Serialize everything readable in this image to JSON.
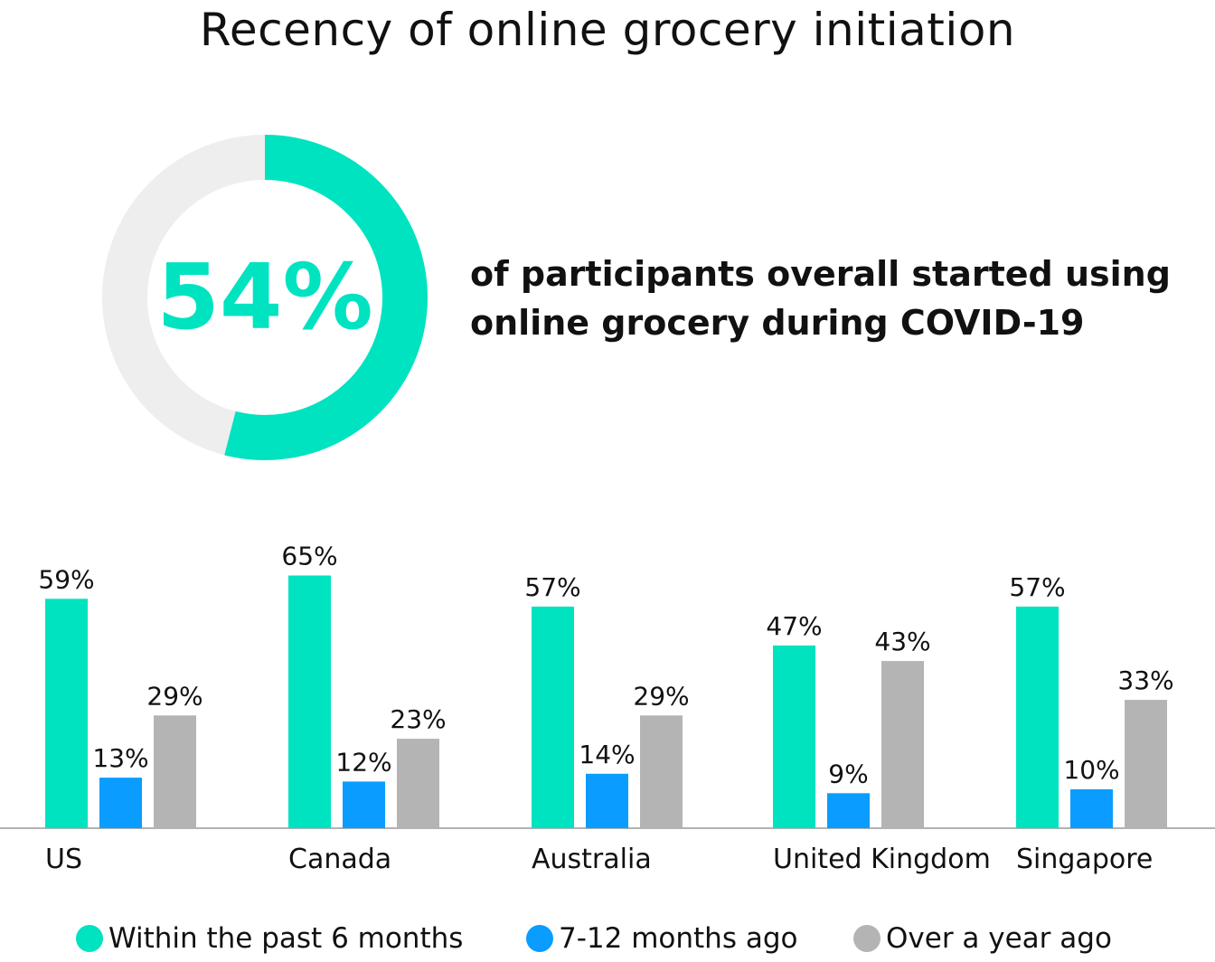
{
  "title": "Recency of online grocery initiation",
  "headline": {
    "value": "54%",
    "text_line1": "of participants overall started using",
    "text_line2": "online grocery during COVID-19"
  },
  "colors": {
    "within_6_months": "#00E3C0",
    "months_7_12": "#0A9DFF",
    "over_a_year": "#B4B4B4",
    "donut_track": "#EEEEEE",
    "axis": "#999999"
  },
  "chart_data": [
    {
      "type": "pie",
      "variant": "donut",
      "values": [
        54,
        46
      ],
      "center_label": "54%"
    },
    {
      "type": "bar",
      "categories": [
        "US",
        "Canada",
        "Australia",
        "United Kingdom",
        "Singapore"
      ],
      "series": [
        {
          "name": "Within the past 6 months",
          "values": [
            59,
            65,
            57,
            47,
            57
          ],
          "labels": [
            "59%",
            "65%",
            "57%",
            "47%",
            "57%"
          ]
        },
        {
          "name": "7-12 months ago",
          "values": [
            13,
            12,
            14,
            9,
            10
          ],
          "labels": [
            "13%",
            "12%",
            "14%",
            "9%",
            "10%"
          ]
        },
        {
          "name": "Over a year ago",
          "values": [
            29,
            23,
            29,
            43,
            33
          ],
          "labels": [
            "29%",
            "23%",
            "29%",
            "43%",
            "33%"
          ]
        }
      ],
      "ylim": [
        0,
        65
      ],
      "grid": false,
      "legend": "bottom"
    }
  ]
}
